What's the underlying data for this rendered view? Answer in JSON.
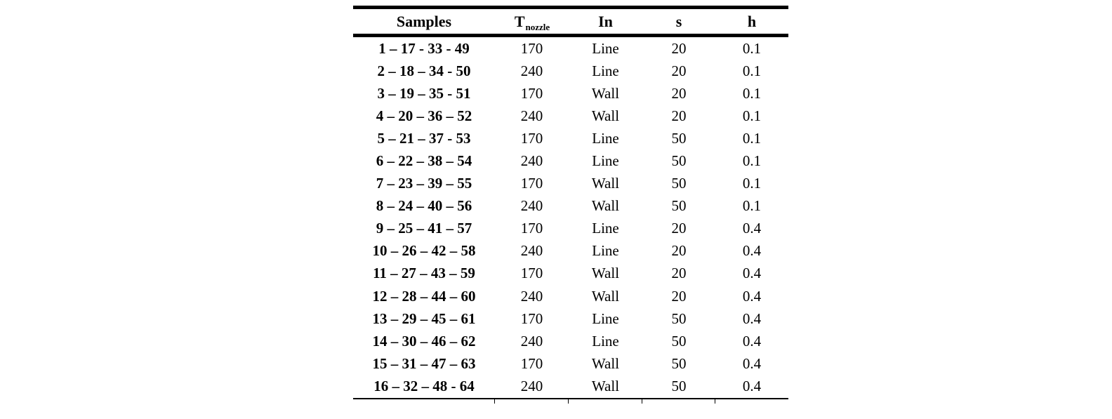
{
  "table": {
    "header": {
      "samples": "Samples",
      "t_base": "T",
      "t_sub": "nozzle",
      "in": "In",
      "s": "s",
      "h": "h"
    },
    "rows": [
      {
        "samples": "1 – 17 - 33 - 49",
        "t_nozzle": "170",
        "in": "Line",
        "s": "20",
        "h": "0.1"
      },
      {
        "samples": "2 – 18 – 34 - 50",
        "t_nozzle": "240",
        "in": "Line",
        "s": "20",
        "h": "0.1"
      },
      {
        "samples": "3 – 19 – 35 - 51",
        "t_nozzle": "170",
        "in": "Wall",
        "s": "20",
        "h": "0.1"
      },
      {
        "samples": "4 – 20 – 36 – 52",
        "t_nozzle": "240",
        "in": "Wall",
        "s": "20",
        "h": "0.1"
      },
      {
        "samples": "5 – 21 – 37 - 53",
        "t_nozzle": "170",
        "in": "Line",
        "s": "50",
        "h": "0.1"
      },
      {
        "samples": "6 – 22 – 38 – 54",
        "t_nozzle": "240",
        "in": "Line",
        "s": "50",
        "h": "0.1"
      },
      {
        "samples": "7 – 23 – 39 – 55",
        "t_nozzle": "170",
        "in": "Wall",
        "s": "50",
        "h": "0.1"
      },
      {
        "samples": "8 – 24 – 40 – 56",
        "t_nozzle": "240",
        "in": "Wall",
        "s": "50",
        "h": "0.1"
      },
      {
        "samples": "9 – 25 – 41 – 57",
        "t_nozzle": "170",
        "in": "Line",
        "s": "20",
        "h": "0.4"
      },
      {
        "samples": "10 – 26 – 42 – 58",
        "t_nozzle": "240",
        "in": "Line",
        "s": "20",
        "h": "0.4"
      },
      {
        "samples": "11 – 27 – 43 – 59",
        "t_nozzle": "170",
        "in": "Wall",
        "s": "20",
        "h": "0.4"
      },
      {
        "samples": "12 – 28 – 44 – 60",
        "t_nozzle": "240",
        "in": "Wall",
        "s": "20",
        "h": "0.4"
      },
      {
        "samples": "13 – 29 – 45 – 61",
        "t_nozzle": "170",
        "in": "Line",
        "s": "50",
        "h": "0.4"
      },
      {
        "samples": "14 – 30 – 46 – 62",
        "t_nozzle": "240",
        "in": "Line",
        "s": "50",
        "h": "0.4"
      },
      {
        "samples": "15 – 31 – 47 – 63",
        "t_nozzle": "170",
        "in": "Wall",
        "s": "50",
        "h": "0.4"
      },
      {
        "samples": "16 – 32 – 48 - 64",
        "t_nozzle": "240",
        "in": "Wall",
        "s": "50",
        "h": "0.4"
      }
    ],
    "colors": {
      "rule": "#000000",
      "text": "#000000",
      "background": "#ffffff"
    }
  }
}
